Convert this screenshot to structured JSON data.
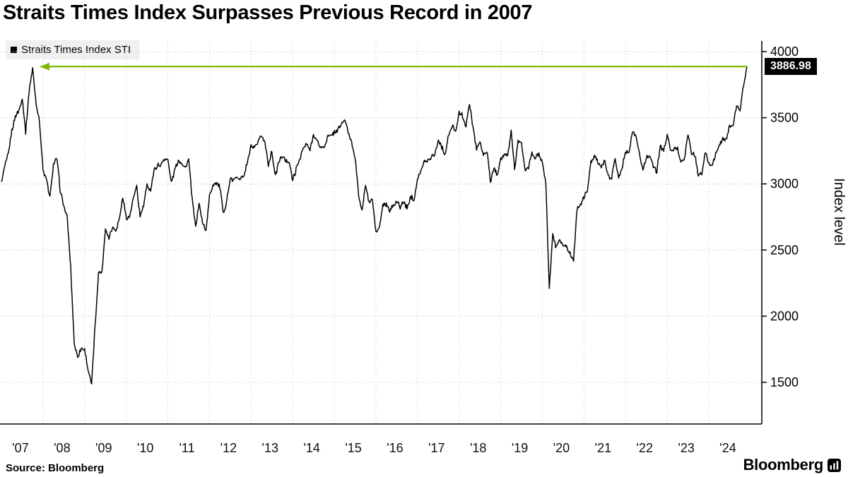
{
  "page": {
    "source_label": "Source: Bloomberg",
    "brand": "Bloomberg"
  },
  "chart_data": {
    "type": "line",
    "title": "Straits Times Index Surpasses Previous Record in 2007",
    "ylabel": "Index level",
    "yticks": [
      1500,
      2000,
      2500,
      3000,
      3500,
      4000
    ],
    "ylim": [
      1185,
      4070
    ],
    "xtick_labels": [
      "'07",
      "'08",
      "'09",
      "'10",
      "'11",
      "'12",
      "'13",
      "'14",
      "'15",
      "'16",
      "'17",
      "'18",
      "'19",
      "'20",
      "'21",
      "'22",
      "'23",
      "'24"
    ],
    "grid": "dotted",
    "legend_position": "top-left",
    "line_color": "#000000",
    "record": {
      "value": 3886.98,
      "label": "3886.98",
      "arrow_color": "#7ab800",
      "previous_record_year": 2007
    },
    "series": [
      {
        "name": "Straits Times Index STI",
        "frequency": "monthly",
        "start_year": 2007,
        "end_year": 2024,
        "values": [
          3015,
          3130,
          3230,
          3400,
          3512,
          3548,
          3652,
          3390,
          3706,
          3875,
          3610,
          3466,
          3100,
          3026,
          2900,
          3147,
          3192,
          2947,
          2830,
          2740,
          2358,
          1795,
          1690,
          1762,
          1746,
          1595,
          1480,
          1920,
          2329,
          2333,
          2659,
          2593,
          2673,
          2651,
          2733,
          2898,
          2745,
          2750,
          2887,
          2975,
          2753,
          2836,
          2988,
          2953,
          3098,
          3142,
          3145,
          3190,
          3180,
          3011,
          3106,
          3180,
          3160,
          3120,
          3189,
          2885,
          2675,
          2856,
          2702,
          2646,
          2907,
          2994,
          3010,
          2979,
          2773,
          2878,
          3036,
          3025,
          3060,
          3038,
          3070,
          3167,
          3285,
          3270,
          3308,
          3368,
          3311,
          3150,
          3245,
          3055,
          3168,
          3211,
          3176,
          3167,
          3027,
          3110,
          3188,
          3264,
          3296,
          3256,
          3374,
          3327,
          3277,
          3274,
          3351,
          3365,
          3391,
          3403,
          3447,
          3487,
          3392,
          3317,
          3202,
          2921,
          2791,
          2998,
          2856,
          2883,
          2629,
          2667,
          2841,
          2839,
          2791,
          2841,
          2869,
          2820,
          2869,
          2814,
          2905,
          2881,
          3047,
          3097,
          3175,
          3175,
          3210,
          3226,
          3330,
          3277,
          3220,
          3374,
          3434,
          3403,
          3534,
          3518,
          3428,
          3615,
          3428,
          3269,
          3320,
          3213,
          3257,
          3019,
          3118,
          3069,
          3190,
          3213,
          3213,
          3400,
          3118,
          3322,
          3300,
          3106,
          3120,
          3230,
          3194,
          3223,
          3154,
          3011,
          2211,
          2624,
          2511,
          2590,
          2530,
          2533,
          2466,
          2424,
          2806,
          2844,
          2902,
          2949,
          3165,
          3218,
          3164,
          3130,
          3167,
          3055,
          3051,
          3198,
          3041,
          3124,
          3249,
          3243,
          3409,
          3357,
          3231,
          3102,
          3211,
          3205,
          3130,
          3093,
          3290,
          3251,
          3365,
          3263,
          3258,
          3270,
          3158,
          3206,
          3373,
          3233,
          3217,
          3067,
          3073,
          3240,
          3153,
          3142,
          3224,
          3293,
          3337,
          3333,
          3436,
          3442,
          3585,
          3558,
          3739,
          3886.98
        ]
      }
    ]
  }
}
